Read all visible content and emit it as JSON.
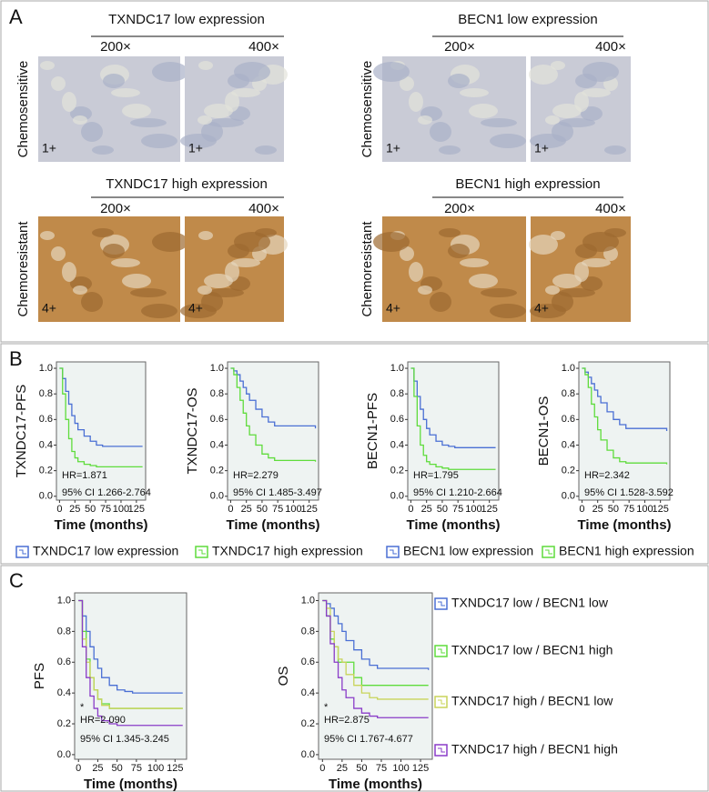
{
  "panel_a": {
    "label": "A",
    "rows": [
      {
        "row_label": "Chemosensitive",
        "groups": [
          {
            "title": "TXNDC17 low expression",
            "mag": [
              "200×",
              "400×"
            ],
            "scores": [
              "1+",
              "1+"
            ]
          },
          {
            "title": "BECN1 low expression",
            "mag": [
              "200×",
              "400×"
            ],
            "scores": [
              "1+",
              "1+"
            ]
          }
        ]
      },
      {
        "row_label": "Chemoresistant",
        "groups": [
          {
            "title": "TXNDC17 high expression",
            "mag": [
              "200×",
              "400×"
            ],
            "scores": [
              "4+",
              "4+"
            ]
          },
          {
            "title": "BECN1 high expression",
            "mag": [
              "200×",
              "400×"
            ],
            "scores": [
              "4+",
              "4+"
            ]
          }
        ]
      }
    ]
  },
  "panel_b": {
    "label": "B"
  },
  "panel_c": {
    "label": "C"
  },
  "chart_data": [
    {
      "type": "line",
      "y_label": "TXNDC17-PFS",
      "x_label": "Time (months)",
      "annotations": [
        "HR=1.871",
        "95% CI 1.266-2.764"
      ],
      "x": [
        0,
        5,
        10,
        15,
        20,
        25,
        30,
        40,
        50,
        60,
        70,
        135
      ],
      "xlim": [
        -5,
        140
      ],
      "ylim": [
        -0.03,
        1.05
      ],
      "xticks": [
        0,
        25,
        50,
        75,
        100,
        125
      ],
      "yticks": [
        {
          "value": 0,
          "label": "0.0"
        },
        {
          "value": 0.2,
          "label": "0.2"
        },
        {
          "value": 0.4,
          "label": "0.4"
        },
        {
          "value": 0.6,
          "label": "0.6"
        },
        {
          "value": 0.8,
          "label": "0.8"
        },
        {
          "value": 1,
          "label": "1.0"
        }
      ],
      "series": [
        {
          "name": "TXNDC17 low expression",
          "color": "#4a6fd4",
          "values": [
            1,
            0.92,
            0.82,
            0.72,
            0.63,
            0.57,
            0.52,
            0.47,
            0.43,
            0.4,
            0.39,
            0.39
          ]
        },
        {
          "name": "TXNDC17 high expression",
          "color": "#5fdc3c",
          "values": [
            1,
            0.8,
            0.6,
            0.45,
            0.35,
            0.3,
            0.27,
            0.25,
            0.24,
            0.23,
            0.23,
            0.23
          ]
        }
      ]
    },
    {
      "type": "line",
      "y_label": "TXNDC17-OS",
      "x_label": "Time (months)",
      "annotations": [
        "HR=2.279",
        "95% CI 1.485-3.497"
      ],
      "x": [
        0,
        5,
        10,
        15,
        20,
        25,
        30,
        40,
        50,
        60,
        70,
        135
      ],
      "xlim": [
        -5,
        140
      ],
      "ylim": [
        -0.03,
        1.05
      ],
      "xticks": [
        0,
        25,
        50,
        75,
        100,
        125
      ],
      "yticks": [
        {
          "value": 0,
          "label": "0.0"
        },
        {
          "value": 0.2,
          "label": "0.2"
        },
        {
          "value": 0.4,
          "label": "0.4"
        },
        {
          "value": 0.6,
          "label": "0.6"
        },
        {
          "value": 0.8,
          "label": "0.8"
        },
        {
          "value": 1,
          "label": "1.0"
        }
      ],
      "series": [
        {
          "color": "#4a6fd4",
          "values": [
            1,
            0.98,
            0.95,
            0.9,
            0.85,
            0.8,
            0.75,
            0.68,
            0.62,
            0.58,
            0.55,
            0.53
          ]
        },
        {
          "color": "#5fdc3c",
          "values": [
            1,
            0.95,
            0.85,
            0.75,
            0.65,
            0.55,
            0.48,
            0.4,
            0.33,
            0.3,
            0.28,
            0.27
          ]
        }
      ]
    },
    {
      "type": "line",
      "y_label": "BECN1-PFS",
      "x_label": "Time (months)",
      "annotations": [
        "HR=1.795",
        "95% CI 1.210-2.664"
      ],
      "x": [
        0,
        5,
        10,
        15,
        20,
        25,
        30,
        40,
        50,
        60,
        70,
        135
      ],
      "xlim": [
        -5,
        140
      ],
      "ylim": [
        -0.03,
        1.05
      ],
      "xticks": [
        0,
        25,
        50,
        75,
        100,
        125
      ],
      "yticks": [
        {
          "value": 0,
          "label": "0.0"
        },
        {
          "value": 0.2,
          "label": "0.2"
        },
        {
          "value": 0.4,
          "label": "0.4"
        },
        {
          "value": 0.6,
          "label": "0.6"
        },
        {
          "value": 0.8,
          "label": "0.8"
        },
        {
          "value": 1,
          "label": "1.0"
        }
      ],
      "series": [
        {
          "name": "BECN1 low expression",
          "color": "#4a6fd4",
          "values": [
            1,
            0.9,
            0.78,
            0.68,
            0.6,
            0.53,
            0.48,
            0.43,
            0.4,
            0.39,
            0.38,
            0.38
          ]
        },
        {
          "name": "BECN1 high expression",
          "color": "#5fdc3c",
          "values": [
            1,
            0.78,
            0.55,
            0.4,
            0.32,
            0.27,
            0.25,
            0.23,
            0.22,
            0.21,
            0.21,
            0.21
          ]
        }
      ]
    },
    {
      "type": "line",
      "y_label": "BECN1-OS",
      "x_label": "Time (months)",
      "annotations": [
        "HR=2.342",
        "95% CI 1.528-3.592"
      ],
      "x": [
        0,
        5,
        10,
        15,
        20,
        25,
        30,
        40,
        50,
        60,
        70,
        135
      ],
      "xlim": [
        -5,
        140
      ],
      "ylim": [
        -0.03,
        1.05
      ],
      "xticks": [
        0,
        25,
        50,
        75,
        100,
        125
      ],
      "yticks": [
        {
          "value": 0,
          "label": "0.0"
        },
        {
          "value": 0.2,
          "label": "0.2"
        },
        {
          "value": 0.4,
          "label": "0.4"
        },
        {
          "value": 0.6,
          "label": "0.6"
        },
        {
          "value": 0.8,
          "label": "0.8"
        },
        {
          "value": 1,
          "label": "1.0"
        }
      ],
      "series": [
        {
          "color": "#4a6fd4",
          "values": [
            1,
            0.97,
            0.93,
            0.88,
            0.83,
            0.78,
            0.73,
            0.66,
            0.6,
            0.56,
            0.53,
            0.51
          ]
        },
        {
          "color": "#5fdc3c",
          "values": [
            1,
            0.95,
            0.85,
            0.72,
            0.62,
            0.52,
            0.44,
            0.36,
            0.3,
            0.27,
            0.26,
            0.25
          ]
        }
      ]
    },
    {
      "type": "line",
      "y_label": "PFS",
      "x_label": "Time (months)",
      "annotations": [
        "*",
        "HR=2.090",
        "95% CI 1.345-3.245"
      ],
      "x": [
        0,
        5,
        10,
        15,
        20,
        25,
        30,
        40,
        50,
        60,
        70,
        135
      ],
      "xlim": [
        -5,
        140
      ],
      "ylim": [
        -0.03,
        1.05
      ],
      "xticks": [
        0,
        25,
        50,
        75,
        100,
        125
      ],
      "yticks": [
        {
          "value": 0,
          "label": "0.0"
        },
        {
          "value": 0.2,
          "label": "0.2"
        },
        {
          "value": 0.4,
          "label": "0.4"
        },
        {
          "value": 0.6,
          "label": "0.6"
        },
        {
          "value": 0.8,
          "label": "0.8"
        },
        {
          "value": 1,
          "label": "1.0"
        }
      ],
      "series": [
        {
          "name": "TXNDC17 low / BECN1 low",
          "color": "#4a6fd4",
          "values": [
            1,
            0.9,
            0.8,
            0.7,
            0.62,
            0.56,
            0.5,
            0.45,
            0.42,
            0.41,
            0.4,
            0.4
          ]
        },
        {
          "name": "TXNDC17 low / BECN1 high",
          "color": "#5fdc3c",
          "values": [
            1,
            0.8,
            0.62,
            0.5,
            0.42,
            0.36,
            0.33,
            0.3,
            0.3,
            0.3,
            0.3,
            0.3
          ]
        },
        {
          "name": "TXNDC17 high / BECN1 low",
          "color": "#c8d45a",
          "values": [
            1,
            0.75,
            0.6,
            0.5,
            0.42,
            0.36,
            0.32,
            0.3,
            0.3,
            0.3,
            0.3,
            0.3
          ]
        },
        {
          "name": "TXNDC17 high / BECN1 high",
          "color": "#8a3cc8",
          "values": [
            1,
            0.7,
            0.5,
            0.38,
            0.3,
            0.25,
            0.22,
            0.2,
            0.19,
            0.19,
            0.19,
            0.19
          ]
        }
      ]
    },
    {
      "type": "line",
      "y_label": "OS",
      "x_label": "Time (months)",
      "annotations": [
        "*",
        "HR=2.875",
        "95% CI 1.767-4.677"
      ],
      "x": [
        0,
        5,
        10,
        15,
        20,
        25,
        30,
        40,
        50,
        60,
        70,
        135
      ],
      "xlim": [
        -5,
        140
      ],
      "ylim": [
        -0.03,
        1.05
      ],
      "xticks": [
        0,
        25,
        50,
        75,
        100,
        125
      ],
      "yticks": [
        {
          "value": 0,
          "label": "0.0"
        },
        {
          "value": 0.2,
          "label": "0.2"
        },
        {
          "value": 0.4,
          "label": "0.4"
        },
        {
          "value": 0.6,
          "label": "0.6"
        },
        {
          "value": 0.8,
          "label": "0.8"
        },
        {
          "value": 1,
          "label": "1.0"
        }
      ],
      "series": [
        {
          "color": "#4a6fd4",
          "values": [
            1,
            0.98,
            0.95,
            0.9,
            0.85,
            0.8,
            0.74,
            0.68,
            0.62,
            0.58,
            0.56,
            0.55
          ]
        },
        {
          "color": "#5fdc3c",
          "values": [
            1,
            0.9,
            0.75,
            0.7,
            0.6,
            0.6,
            0.6,
            0.5,
            0.45,
            0.45,
            0.45,
            0.45
          ]
        },
        {
          "color": "#c8d45a",
          "values": [
            1,
            0.95,
            0.8,
            0.7,
            0.62,
            0.6,
            0.52,
            0.45,
            0.4,
            0.37,
            0.36,
            0.36
          ]
        },
        {
          "color": "#8a3cc8",
          "values": [
            1,
            0.9,
            0.72,
            0.6,
            0.5,
            0.42,
            0.37,
            0.3,
            0.27,
            0.25,
            0.24,
            0.24
          ]
        }
      ]
    }
  ]
}
